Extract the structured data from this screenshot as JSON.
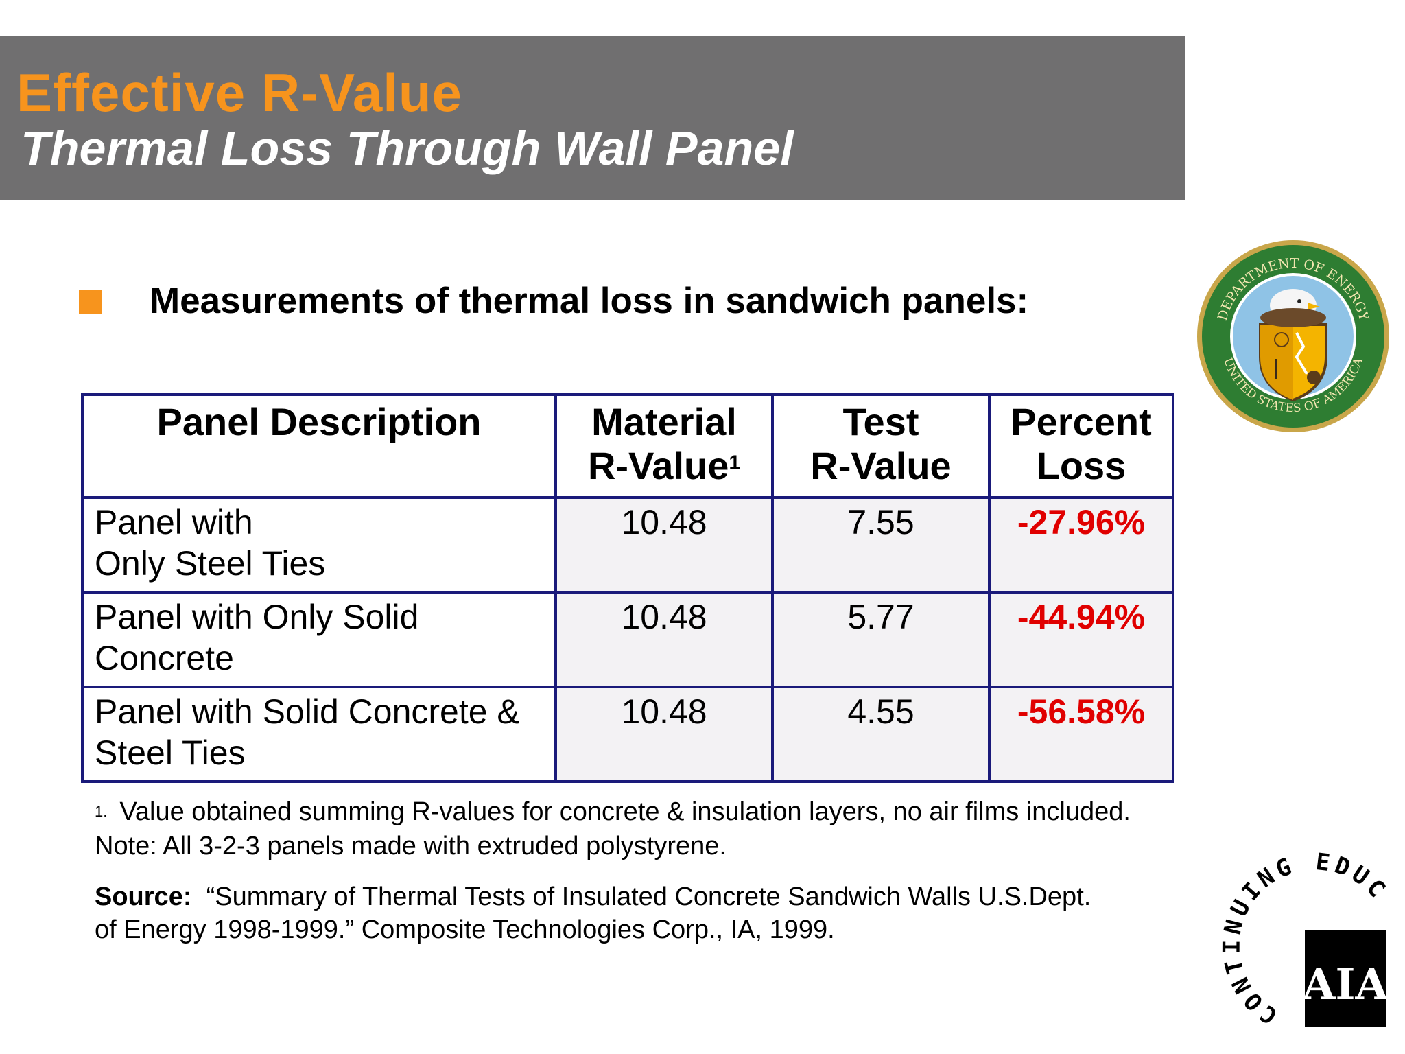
{
  "header": {
    "title": "Effective R-Value",
    "subtitle": "Thermal Loss Through Wall Panel"
  },
  "bullet": {
    "text": "Measurements of thermal loss in sandwich panels:"
  },
  "table": {
    "headers": {
      "description": "Panel Description",
      "material_line1": "Material",
      "material_line2": "R-Value",
      "material_sup": "1",
      "test_line1": "Test",
      "test_line2": "R-Value",
      "loss_line1": "Percent",
      "loss_line2": "Loss"
    },
    "rows": [
      {
        "desc_line1": "Panel with",
        "desc_line2": "Only Steel Ties",
        "material": "10.48",
        "test": "7.55",
        "loss": "-27.96%"
      },
      {
        "desc_line1": "Panel with Only Solid",
        "desc_line2": "Concrete",
        "material": "10.48",
        "test": "5.77",
        "loss": "-44.94%"
      },
      {
        "desc_line1": "Panel with Solid Concrete &",
        "desc_line2": "Steel Ties",
        "material": "10.48",
        "test": "4.55",
        "loss": "-56.58%"
      }
    ]
  },
  "footnote": {
    "mark": "1.",
    "line1": "Value obtained summing R-values for concrete & insulation layers, no air films included.",
    "line2": "Note:  All 3-2-3 panels made with extruded polystyrene."
  },
  "source": {
    "label": "Source:",
    "line1": "“Summary of Thermal Tests of Insulated Concrete Sandwich Walls U.S.Dept.",
    "line2": "of Energy 1998-1999.”  Composite Technologies Corp., IA, 1999."
  },
  "logos": {
    "doe_seal_top": "DEPARTMENT OF ENERGY",
    "doe_seal_bottom": "UNITED STATES OF AMERICA",
    "aia_ring": "CONTINUING EDUCATION",
    "aia_mark": "AIA"
  },
  "colors": {
    "title_bar": "#706f70",
    "title_orange": "#f7941d",
    "table_border": "#1a1a7a",
    "loss_red": "#e00000"
  }
}
